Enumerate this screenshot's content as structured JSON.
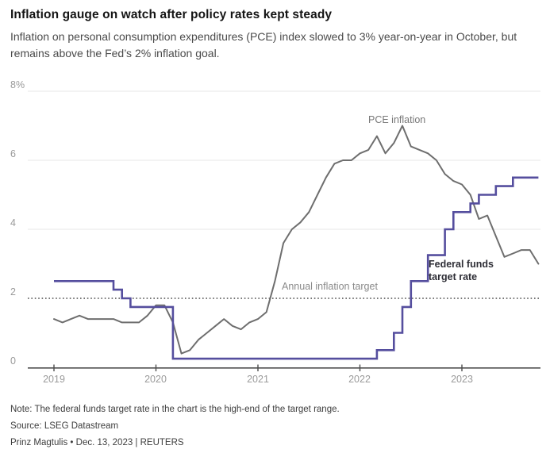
{
  "header": {
    "title": "Inflation gauge on watch after policy rates kept steady",
    "subtitle": "Inflation on personal consumption expenditures (PCE) index slowed to 3% year-on-year in October, but remains above the Fed’s 2% inflation goal."
  },
  "chart_data": {
    "type": "line",
    "title": "Inflation gauge on watch after policy rates kept steady",
    "x_unit": "month",
    "x_tick_labels": [
      "2019",
      "2020",
      "2021",
      "2022",
      "2023"
    ],
    "y_tick_labels": [
      "8%",
      "6",
      "4",
      "2",
      "0"
    ],
    "y_tick_values": [
      8,
      6,
      4,
      2,
      0
    ],
    "ylim": [
      0,
      8
    ],
    "grid_values": [
      8,
      6,
      4
    ],
    "series": [
      {
        "name": "PCE inflation",
        "type": "line",
        "color": "#6e6e6e",
        "start": "2019-01",
        "values": [
          1.4,
          1.3,
          1.4,
          1.5,
          1.4,
          1.4,
          1.4,
          1.4,
          1.3,
          1.3,
          1.3,
          1.5,
          1.8,
          1.8,
          1.3,
          0.4,
          0.5,
          0.8,
          1.0,
          1.2,
          1.4,
          1.2,
          1.1,
          1.3,
          1.4,
          1.6,
          2.5,
          3.6,
          4.0,
          4.2,
          4.5,
          5.0,
          5.5,
          5.9,
          6.0,
          6.0,
          6.2,
          6.3,
          6.7,
          6.2,
          6.5,
          7.0,
          6.4,
          6.3,
          6.2,
          6.0,
          5.6,
          5.4,
          5.3,
          5.0,
          4.3,
          4.4,
          3.8,
          3.2,
          3.3,
          3.4,
          3.4,
          3.0
        ]
      },
      {
        "name": "Federal funds target rate",
        "type": "step",
        "color": "#554e9e",
        "steps": [
          [
            "2019-01",
            2.5
          ],
          [
            "2019-08",
            2.25
          ],
          [
            "2019-09",
            2.0
          ],
          [
            "2019-10",
            1.75
          ],
          [
            "2020-03",
            0.25
          ],
          [
            "2022-03",
            0.5
          ],
          [
            "2022-05",
            1.0
          ],
          [
            "2022-06",
            1.75
          ],
          [
            "2022-07",
            2.5
          ],
          [
            "2022-09",
            3.25
          ],
          [
            "2022-11",
            4.0
          ],
          [
            "2022-12",
            4.5
          ],
          [
            "2023-02",
            4.75
          ],
          [
            "2023-03",
            5.0
          ],
          [
            "2023-05",
            5.25
          ],
          [
            "2023-07",
            5.5
          ]
        ],
        "end": "2023-10"
      }
    ],
    "reference_line": {
      "value": 2,
      "label": "Annual inflation target"
    },
    "annotations": {
      "pce_label": "PCE inflation",
      "fed_label_line1": "Federal funds",
      "fed_label_line2": "target rate",
      "target_label": "Annual inflation target"
    },
    "colors": {
      "pce_line": "#6e6e6e",
      "fed_line": "#554e9e",
      "grid": "#e7e7e7",
      "axis": "#4d4d4d",
      "tick_label": "#9a9a9a",
      "reference": "#4a4a4a"
    },
    "legend_position": "inline-annotations",
    "grid": "horizontal-only"
  },
  "footer": {
    "note": "Note: The federal funds target rate in the chart is the high-end of the target range.",
    "source": "Source: LSEG Datastream",
    "byline": "Prinz Magtulis • Dec. 13, 2023 | REUTERS"
  }
}
